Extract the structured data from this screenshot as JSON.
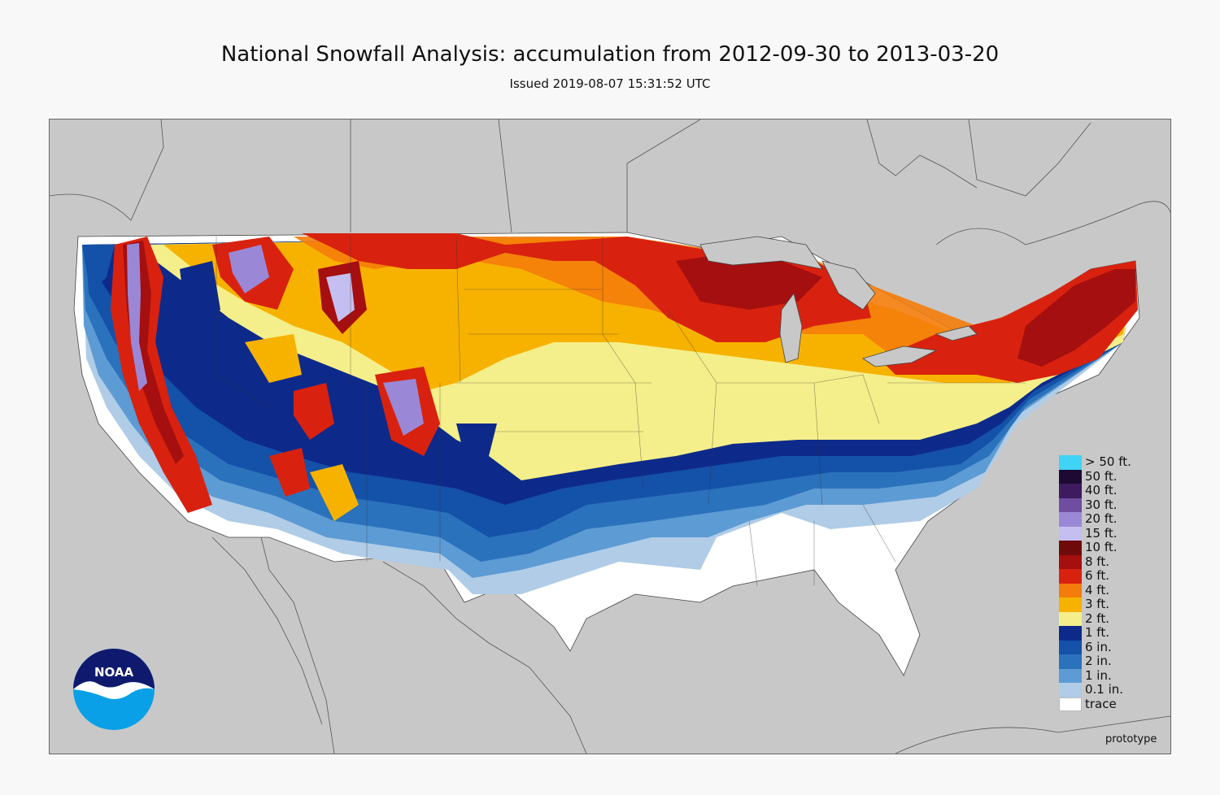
{
  "title": "National Snowfall Analysis: accumulation from 2012-09-30 to 2013-03-20",
  "subtitle": "Issued 2019-08-07 15:31:52 UTC",
  "legend": [
    {
      "label": "> 50 ft.",
      "color": "#3fd3f5"
    },
    {
      "label": "50 ft.",
      "color": "#1c0a33"
    },
    {
      "label": "40 ft.",
      "color": "#3e1a5e"
    },
    {
      "label": "30 ft.",
      "color": "#6f4da0"
    },
    {
      "label": "20 ft.",
      "color": "#9a88d6"
    },
    {
      "label": "15 ft.",
      "color": "#c4bff0"
    },
    {
      "label": "10 ft.",
      "color": "#6e0a0a"
    },
    {
      "label": "8 ft.",
      "color": "#a50f0f"
    },
    {
      "label": "6 ft.",
      "color": "#d8220f"
    },
    {
      "label": "4 ft.",
      "color": "#f47c0a"
    },
    {
      "label": "3 ft.",
      "color": "#f7b200"
    },
    {
      "label": "2 ft.",
      "color": "#f4ef8a"
    },
    {
      "label": "1 ft.",
      "color": "#0d2a8a"
    },
    {
      "label": "6 in.",
      "color": "#1451a8"
    },
    {
      "label": "2 in.",
      "color": "#2b72bc"
    },
    {
      "label": "1 in.",
      "color": "#5d9bd4"
    },
    {
      "label": "0.1 in.",
      "color": "#b0cce6"
    },
    {
      "label": "trace",
      "color": "#ffffff"
    }
  ],
  "logo": {
    "text": "NOAA",
    "icon": "noaa-logo-icon"
  },
  "watermark": "prototype",
  "colors": {
    "land_outside": "#c8c8c8",
    "background": "#f8f8f8",
    "border_lines": "#444444"
  }
}
